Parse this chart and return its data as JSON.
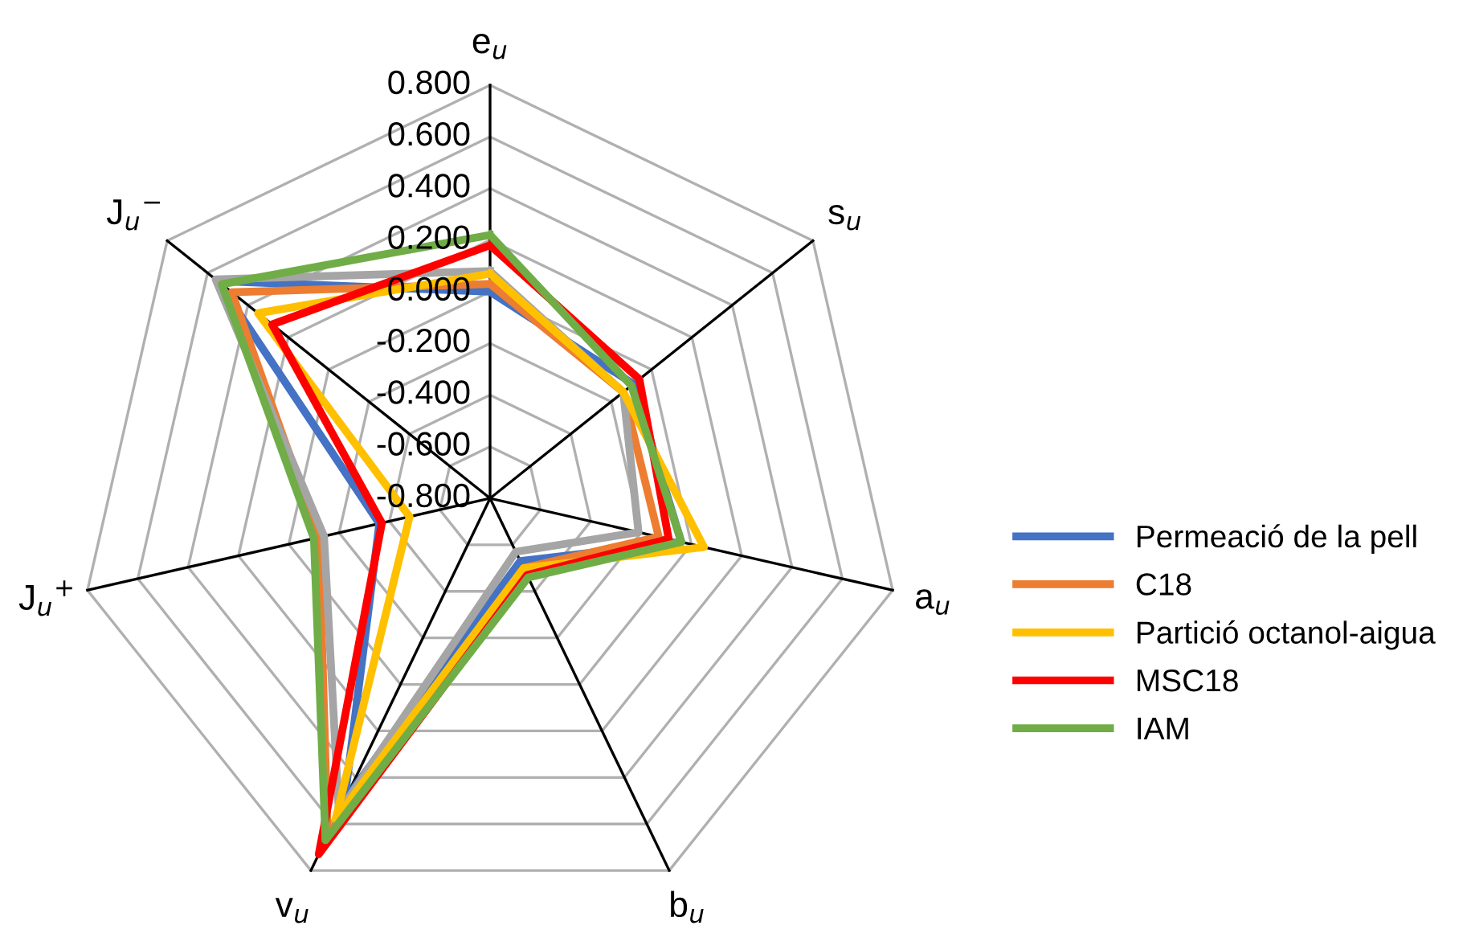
{
  "chart_data": {
    "type": "radar",
    "categories": [
      "e$_{u}$",
      "s$_{u}$",
      "a$_{u}$",
      "b$_{u}$",
      "v$_{u}$",
      "J$_{u}$$^{+}$",
      "J$_{u}$$^{−}$"
    ],
    "ylim": [
      -0.8,
      0.8
    ],
    "yticks": [
      {
        "value": -0.8,
        "label": "-0.800"
      },
      {
        "value": -0.6,
        "label": "-0.600"
      },
      {
        "value": -0.4,
        "label": "-0.400"
      },
      {
        "value": -0.2,
        "label": "-0.200"
      },
      {
        "value": 0,
        "label": "0.000"
      },
      {
        "value": 0.2,
        "label": "0.200"
      },
      {
        "value": 0.4,
        "label": "0.400"
      },
      {
        "value": 0.6,
        "label": "0.600"
      },
      {
        "value": 0.8,
        "label": "0.800"
      }
    ],
    "grid": true,
    "legend": "right",
    "series": [
      {
        "name": "Permeació de la pell",
        "color": "#4472c4",
        "values": [
          0.0,
          -0.09,
          -0.04,
          -0.53,
          0.5,
          -0.36,
          0.55
        ]
      },
      {
        "name": "C18",
        "color": "#ed7d31",
        "values": [
          0.03,
          -0.14,
          -0.13,
          -0.5,
          0.65,
          -0.12,
          0.48
        ]
      },
      {
        "color": "#a5a5a5",
        "values": [
          0.08,
          -0.14,
          -0.21,
          -0.57,
          0.55,
          -0.14,
          0.56
        ]
      },
      {
        "name": "Partició octanol-aigua",
        "color": "#ffc000",
        "values": [
          0.07,
          -0.14,
          0.05,
          -0.5,
          0.58,
          -0.48,
          0.35
        ]
      },
      {
        "name": "MSC18",
        "color": "#ff0000",
        "values": [
          0.18,
          -0.06,
          -0.09,
          -0.47,
          0.73,
          -0.37,
          0.28
        ]
      },
      {
        "name": "IAM",
        "color": "#70ad47",
        "values": [
          0.22,
          -0.1,
          -0.04,
          -0.46,
          0.67,
          -0.1,
          0.53
        ]
      }
    ]
  }
}
